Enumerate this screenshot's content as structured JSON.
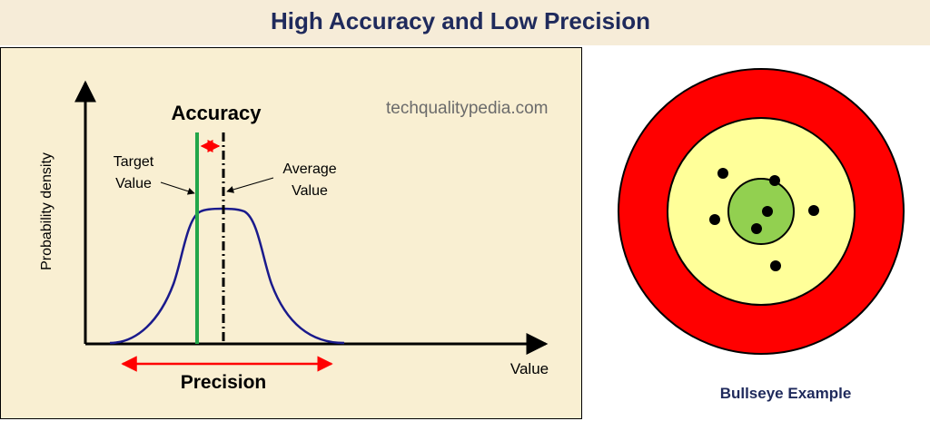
{
  "title": "High Accuracy and Low Precision",
  "watermark": "techqualitypedia.com",
  "diagram": {
    "y_axis_label": "Probability density",
    "x_axis_label": "Value",
    "accuracy_label": "Accuracy",
    "precision_label": "Precision",
    "target_label_line1": "Target",
    "target_label_line2": "Value",
    "average_label_line1": "Average",
    "average_label_line2": "Value"
  },
  "bullseye": {
    "caption": "Bullseye Example",
    "colors": {
      "outer": "#ff0000",
      "middle": "#ffff99",
      "center": "#92d050",
      "shot": "#000000"
    }
  },
  "colors": {
    "title": "#1f2a5c",
    "panel_bg": "#f9efd2",
    "curve": "#1a1a8c",
    "target_line": "#22a64a",
    "arrows": "#ff0000"
  }
}
